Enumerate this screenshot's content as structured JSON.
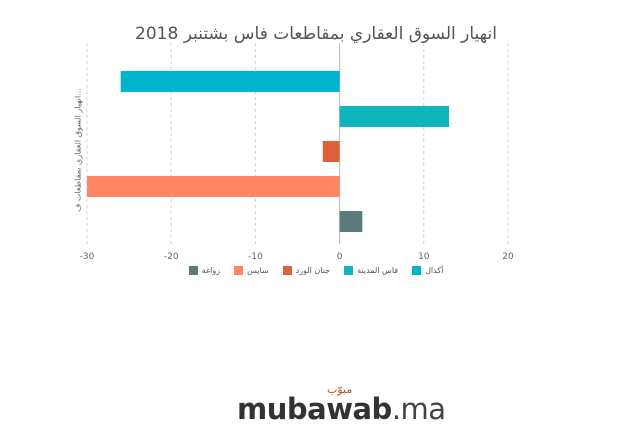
{
  "chart_data": {
    "type": "bar",
    "orientation": "horizontal",
    "title": "انهيار السوق العقاري بمقاطعات فاس بشتنبر 2018",
    "ylabel": "انهيار السوق العقاري بمقاطعات ف...",
    "xlabel": "",
    "xlim": [
      -30,
      20
    ],
    "xticks": [
      -30,
      -20,
      -10,
      0,
      10,
      20
    ],
    "grid": true,
    "legend_position": "bottom",
    "series": [
      {
        "name": "أكدال",
        "value": -26,
        "color": "#00b4cc"
      },
      {
        "name": "فاس المدينة",
        "value": 13,
        "color": "#0fb4bc"
      },
      {
        "name": "جنان الورد",
        "value": -2,
        "color": "#e0603c"
      },
      {
        "name": "سايس",
        "value": -30,
        "color": "#ff8565"
      },
      {
        "name": "زواغة",
        "value": 2.7,
        "color": "#5b7a7c"
      }
    ]
  },
  "branding": {
    "logo_text": "mubawab",
    "logo_suffix": ".ma",
    "logo_arabic": "مبوّب"
  }
}
